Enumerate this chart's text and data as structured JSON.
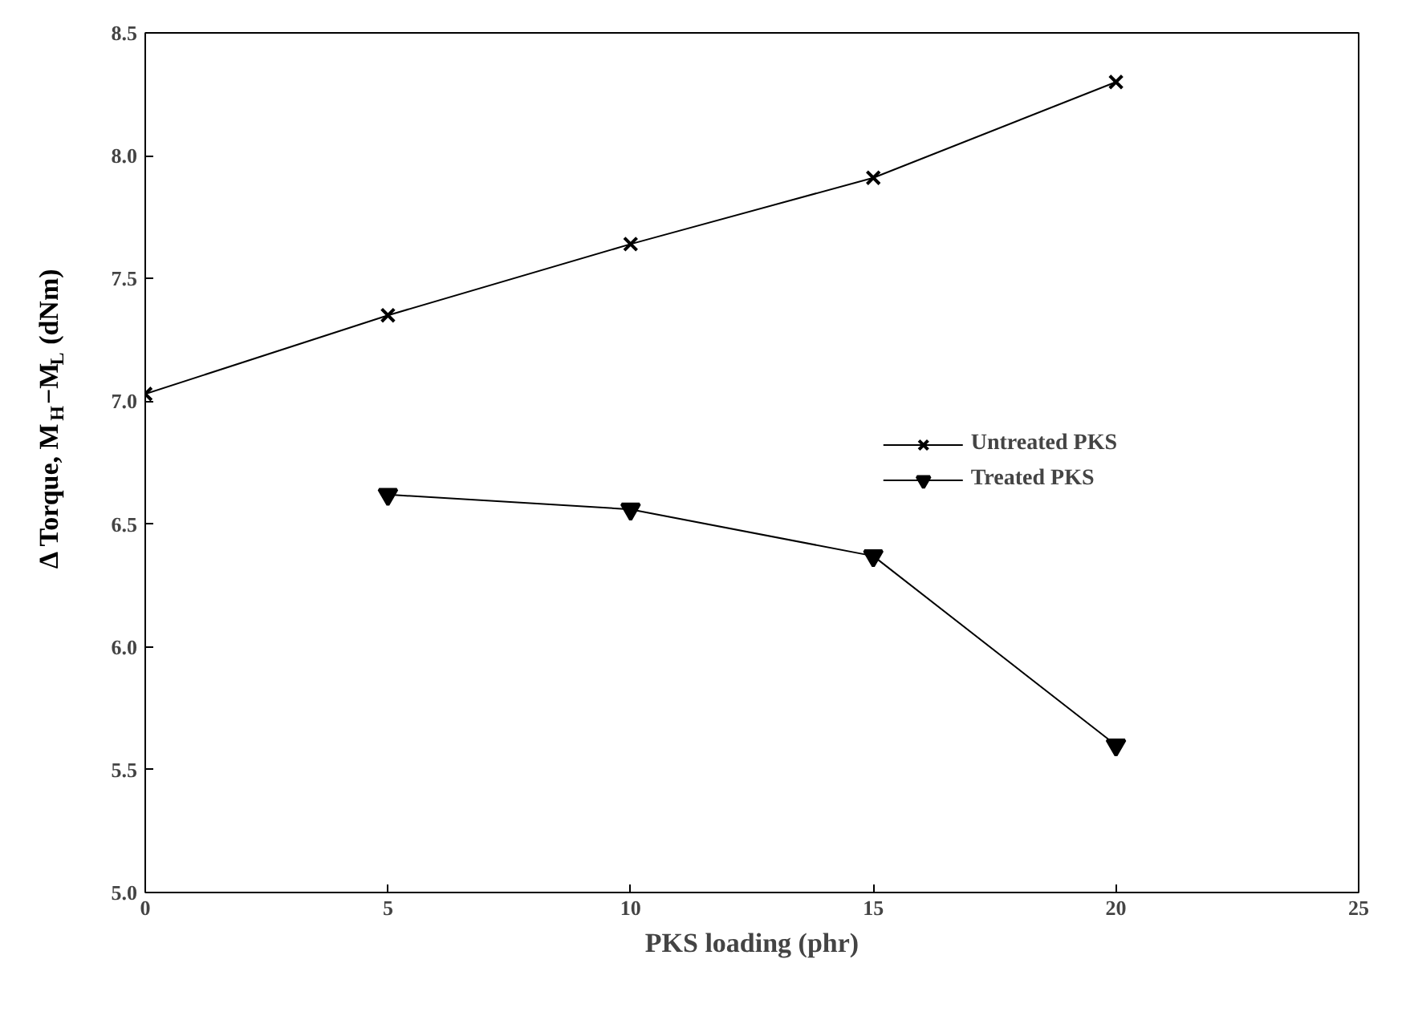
{
  "chart_data": {
    "type": "line",
    "xlabel": "PKS loading (phr)",
    "ylabel": "Δ Torque, M$_{H}$−M$_{L}$ (dNm)",
    "series": [
      {
        "name": "Untreated PKS",
        "color": "#000000",
        "marker": "cross",
        "x": [
          0,
          5,
          10,
          15,
          20
        ],
        "values": [
          7.03,
          7.35,
          7.64,
          7.91,
          8.3
        ]
      },
      {
        "name": "Treated PKS",
        "color": "#000000",
        "marker": "triangle",
        "x": [
          5,
          10,
          15,
          20
        ],
        "values": [
          6.62,
          6.56,
          6.37,
          5.6
        ]
      }
    ],
    "xlim": [
      0,
      25
    ],
    "xticks": [
      0,
      5,
      10,
      15,
      20,
      25
    ],
    "ylim": [
      5.0,
      8.5
    ],
    "yticks": [
      {
        "value": 5,
        "label": "5.0"
      },
      5.5,
      {
        "value": 6,
        "label": "6.0"
      },
      6.5,
      {
        "value": 7,
        "label": "7.0"
      },
      7.5,
      {
        "value": 8,
        "label": "8.0"
      },
      8.5
    ],
    "grid": false,
    "legend": "right",
    "line_style": "solid"
  }
}
